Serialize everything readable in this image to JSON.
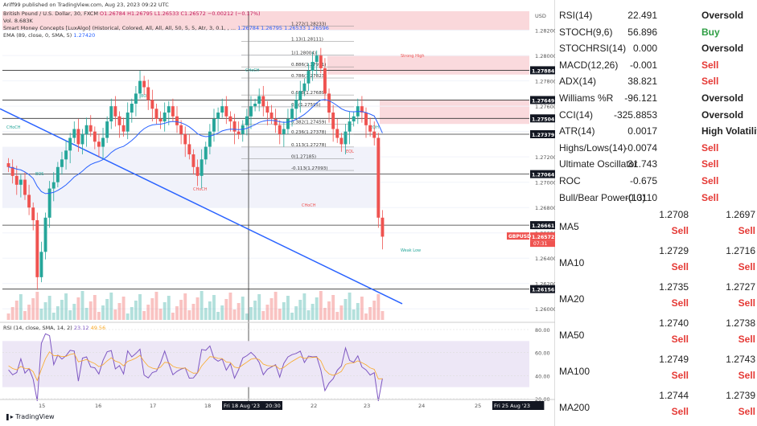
{
  "header": {
    "publisher": "Ariff99 published on TradingView.com, Aug 23, 2023 09:22 UTC",
    "symbol_line": "British Pound / U.S. Dollar, 30, FXCM",
    "ohlc": "O1.26784 H1.26795 L1.26533 C1.26572 −0.00212 (−0.17%)",
    "volume": "Vol. 8.683K",
    "smc_line": "Smart Money Concepts [LuxAlgo] (Historical, Colored, All, All, All, 50, 5, 5, Atr, 3, 0.1, , ...",
    "smc_values": "1.26784  1.26795  1.26533  1.26596",
    "ema_line": "EMA (89, close, 0, SMA, 5)",
    "ema_value": "1.27420",
    "rsi_line": "RSI (14, close, SMA, 14, 2)",
    "rsi_value": "23.12",
    "rsi_value2": "49.56",
    "logo": "TradingView"
  },
  "price_axis": {
    "title": "USD",
    "ticks": [
      "1.28200",
      "1.28000",
      "1.27800",
      "1.27600",
      "1.27400",
      "1.27200",
      "1.27000",
      "1.26800",
      "1.26600",
      "1.26400",
      "1.26200",
      "1.26000"
    ],
    "marks": [
      {
        "label": "1.27884",
        "y": 1.27884
      },
      {
        "label": "1.27649",
        "y": 1.27649
      },
      {
        "label": "1.27504",
        "y": 1.27504
      },
      {
        "label": "1.27379",
        "y": 1.27379
      },
      {
        "label": "1.27064",
        "y": 1.27064
      },
      {
        "label": "1.26661",
        "y": 1.26661
      },
      {
        "label": "1.26572",
        "y": 1.26572
      },
      {
        "label": "1.26156",
        "y": 1.26156
      }
    ],
    "current_label": "1.26572",
    "current_countdown": "07:31",
    "symbol_tag": "GBPUSD"
  },
  "time_axis": {
    "labels": [
      "15",
      "16",
      "17",
      "18",
      "Fri 18 Aug '23",
      "20:30",
      "22",
      "23",
      "24",
      "25",
      "Fri 25 Aug '23"
    ]
  },
  "rsi_axis": {
    "ticks": [
      "80.00",
      "60.00",
      "40.00",
      "20.00"
    ]
  },
  "fib_labels": [
    "1(1.28004)",
    "0.886(1.27911)",
    "0.786(1.27823)",
    "0.618(1.27689)",
    "0.5(1.27595)",
    "0.382(1.27459)",
    "0.236(1.27378)",
    "0.113(1.27278)",
    "0(1.27185)",
    "-0.113(1.27093)",
    "1.13(1.28111)",
    "1.272(1.28233)"
  ],
  "smc_tags": [
    "CHoCH",
    "BOS",
    "CHoCH",
    "CHoCH",
    "CHoCH",
    "Strong High",
    "Weak Low",
    "BOS",
    "EQH",
    "EQL"
  ],
  "indicators": [
    {
      "name": "RSI(14)",
      "value": "22.491",
      "signal": "Oversold",
      "kind": "neutral"
    },
    {
      "name": "STOCH(9,6)",
      "value": "56.896",
      "signal": "Buy",
      "kind": "buy"
    },
    {
      "name": "STOCHRSI(14)",
      "value": "0.000",
      "signal": "Oversold",
      "kind": "neutral"
    },
    {
      "name": "MACD(12,26)",
      "value": "-0.001",
      "signal": "Sell",
      "kind": "sell"
    },
    {
      "name": "ADX(14)",
      "value": "38.821",
      "signal": "Sell",
      "kind": "sell"
    },
    {
      "name": "Williams %R",
      "value": "-96.121",
      "signal": "Oversold",
      "kind": "neutral"
    },
    {
      "name": "CCI(14)",
      "value": "-325.8853",
      "signal": "Oversold",
      "kind": "neutral"
    },
    {
      "name": "ATR(14)",
      "value": "0.0017",
      "signal": "High Volatility",
      "kind": "neutral"
    },
    {
      "name": "Highs/Lows(14)",
      "value": "-0.0074",
      "signal": "Sell",
      "kind": "sell"
    },
    {
      "name": "Ultimate Oscillator",
      "value": "31.743",
      "signal": "Sell",
      "kind": "sell"
    },
    {
      "name": "ROC",
      "value": "-0.675",
      "signal": "Sell",
      "kind": "sell"
    },
    {
      "name": "Bull/Bear Power(13)",
      "value": "-0.0110",
      "signal": "Sell",
      "kind": "sell"
    }
  ],
  "moving_averages": [
    {
      "name": "MA5",
      "simple": "1.2708",
      "simple_signal": "Sell",
      "exp": "1.2697",
      "exp_signal": "Sell"
    },
    {
      "name": "MA10",
      "simple": "1.2729",
      "simple_signal": "Sell",
      "exp": "1.2716",
      "exp_signal": "Sell"
    },
    {
      "name": "MA20",
      "simple": "1.2735",
      "simple_signal": "Sell",
      "exp": "1.2727",
      "exp_signal": "Sell"
    },
    {
      "name": "MA50",
      "simple": "1.2740",
      "simple_signal": "Sell",
      "exp": "1.2738",
      "exp_signal": "Sell"
    },
    {
      "name": "MA100",
      "simple": "1.2749",
      "simple_signal": "Sell",
      "exp": "1.2743",
      "exp_signal": "Sell"
    },
    {
      "name": "MA200",
      "simple": "1.2744",
      "simple_signal": "Sell",
      "exp": "1.2739",
      "exp_signal": "Sell"
    }
  ],
  "colors": {
    "up": "#26a69a",
    "down": "#ef5350",
    "ema": "#2962ff",
    "rsi": "#7e57c2",
    "sell": "#e53935",
    "buy": "#2e9e44"
  },
  "chart_data": {
    "type": "candlestick",
    "title": "British Pound / U.S. Dollar, 30, FXCM",
    "ylim": [
      1.259,
      1.2835
    ],
    "close_series": [
      1.2712,
      1.2705,
      1.2698,
      1.2702,
      1.269,
      1.268,
      1.267,
      1.2625,
      1.2645,
      1.2672,
      1.2695,
      1.27,
      1.2712,
      1.2718,
      1.2725,
      1.2735,
      1.2742,
      1.273,
      1.2738,
      1.2745,
      1.274,
      1.2732,
      1.2728,
      1.2735,
      1.2748,
      1.276,
      1.2752,
      1.2745,
      1.274,
      1.2755,
      1.2762,
      1.277,
      1.278,
      1.2775,
      1.2765,
      1.2758,
      1.275,
      1.2748,
      1.2755,
      1.276,
      1.2752,
      1.2745,
      1.2738,
      1.273,
      1.2722,
      1.2712,
      1.2705,
      1.2718,
      1.2728,
      1.274,
      1.275,
      1.2755,
      1.276,
      1.2752,
      1.2748,
      1.274,
      1.2738,
      1.2745,
      1.2752,
      1.276,
      1.2762,
      1.2768,
      1.276,
      1.2755,
      1.275,
      1.2745,
      1.2738,
      1.2742,
      1.275,
      1.2758,
      1.2765,
      1.2772,
      1.2778,
      1.2788,
      1.2795,
      1.28,
      1.279,
      1.277,
      1.2755,
      1.2742,
      1.2735,
      1.273,
      1.274,
      1.2748,
      1.2752,
      1.276,
      1.2755,
      1.2745,
      1.274,
      1.2735,
      1.2672,
      1.2657
    ]
  }
}
